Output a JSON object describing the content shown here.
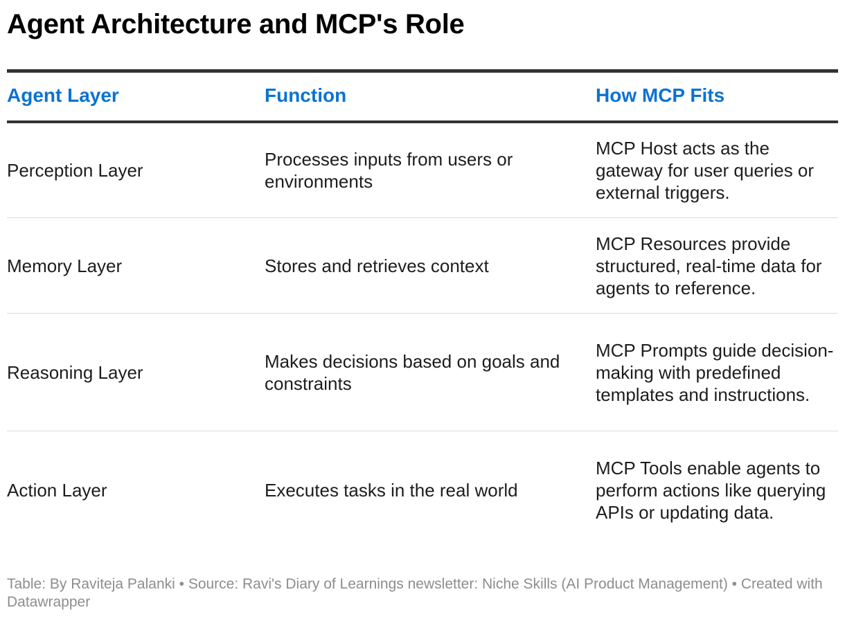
{
  "title": "Agent Architecture and MCP's Role",
  "header_color": "#0b73d1",
  "columns": [
    "Agent Layer",
    "Function",
    "How MCP Fits"
  ],
  "rows": [
    {
      "layer": "Perception Layer",
      "function": "Processes inputs from users or environments",
      "mcp": "MCP Host acts as the gateway for user queries or external triggers."
    },
    {
      "layer": "Memory Layer",
      "function": "Stores and retrieves context",
      "mcp": "MCP Resources provide structured, real-time data for agents to reference."
    },
    {
      "layer": "Reasoning Layer",
      "function": "Makes decisions based on goals and constraints",
      "mcp": "MCP Prompts guide decision-making with predefined templates and instructions."
    },
    {
      "layer": "Action Layer",
      "function": "Executes tasks in the real world",
      "mcp": "MCP Tools enable agents to perform actions like querying APIs or updating data."
    }
  ],
  "footer": "Table: By Raviteja Palanki  • Source: Ravi's Diary of Learnings newsletter: Niche Skills (AI Product Management) • Created with Datawrapper"
}
